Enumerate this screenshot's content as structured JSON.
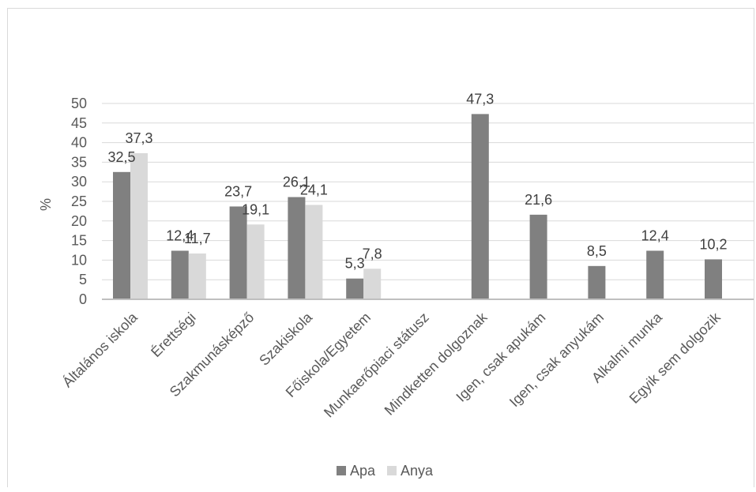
{
  "chart_data": {
    "type": "bar",
    "title": "",
    "xlabel": "",
    "ylabel": "%",
    "ylim": [
      0,
      50
    ],
    "yticks": [
      "0",
      "5",
      "10",
      "15",
      "20",
      "25",
      "30",
      "35",
      "40",
      "45",
      "50"
    ],
    "grid": true,
    "legend": "bottom",
    "categories": [
      "Általános iskola",
      "Érettségi",
      "Szakmunásképző",
      "Szakiskola",
      "Főiskola/Egyetem",
      "Munkaerőpiaci státusz",
      "Mindketten dolgoznak",
      "Igen, csak apukám",
      "Igen, csak anyukám",
      "Alkalmi munka",
      "Egyik sem dolgozik"
    ],
    "series": [
      {
        "name": "Apa",
        "color": "#808080",
        "values": [
          32.5,
          12.4,
          23.7,
          26.1,
          5.3,
          null,
          47.3,
          21.6,
          8.5,
          12.4,
          10.2
        ],
        "labels": [
          "32,5",
          "12,4",
          "23,7",
          "26,1",
          "5,3",
          "",
          "47,3",
          "21,6",
          "8,5",
          "12,4",
          "10,2"
        ]
      },
      {
        "name": "Anya",
        "color": "#d9d9d9",
        "values": [
          37.3,
          11.7,
          19.1,
          24.1,
          7.8,
          null,
          null,
          null,
          null,
          null,
          null
        ],
        "labels": [
          "37,3",
          "11,7",
          "19,1",
          "24,1",
          "7,8",
          "",
          "",
          "",
          "",
          "",
          ""
        ]
      }
    ]
  }
}
